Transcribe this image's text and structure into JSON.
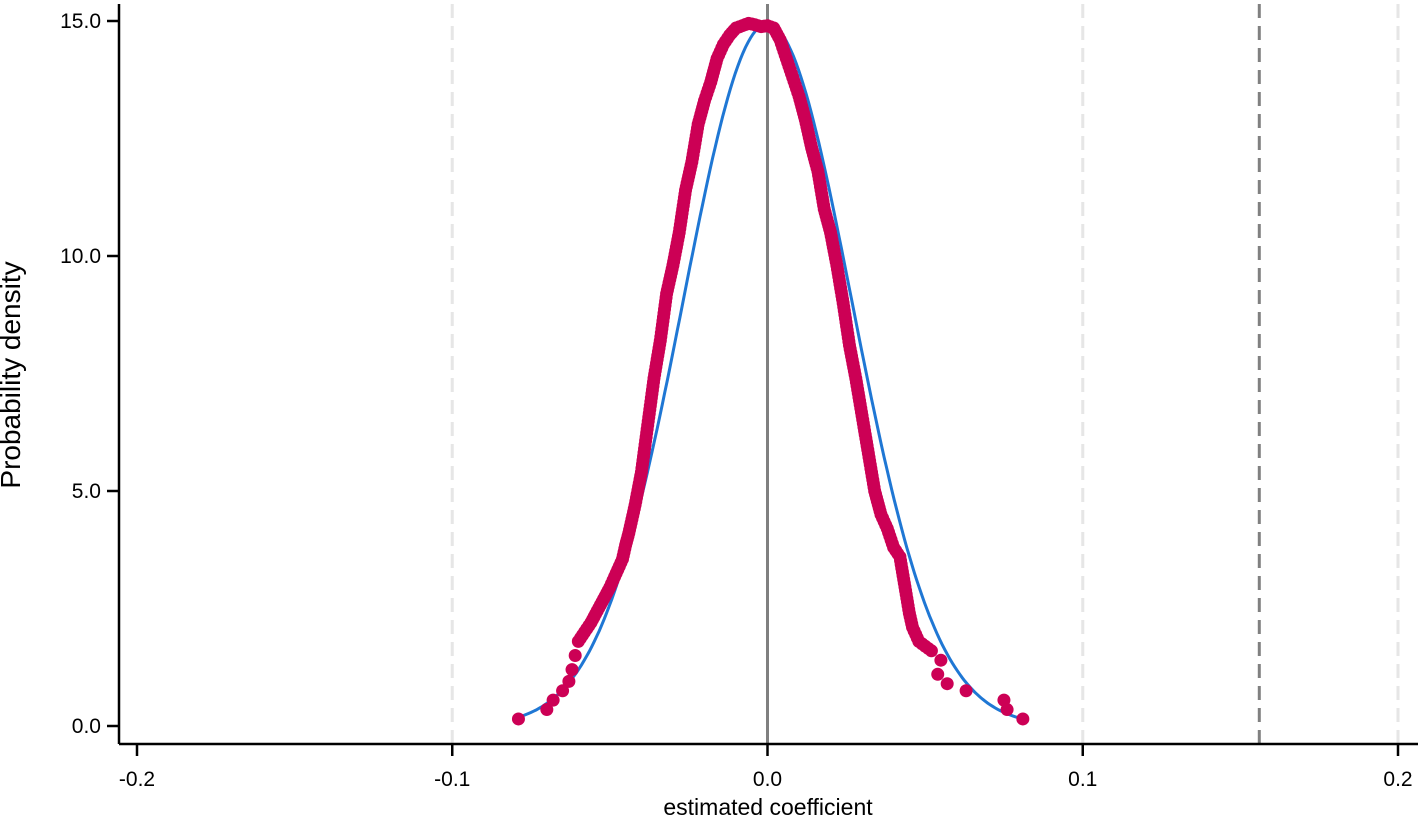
{
  "chart_data": {
    "type": "scatter",
    "xlabel": "estimated coefficient",
    "ylabel": "Probability density",
    "xlim": [
      -0.2,
      0.2
    ],
    "ylim": [
      0,
      15
    ],
    "x_ticks": [
      -0.2,
      -0.1,
      0.0,
      0.1,
      0.2
    ],
    "x_tick_labels": [
      "-0.2",
      "-0.1",
      "0.0",
      "0.1",
      "0.2"
    ],
    "y_ticks": [
      0,
      5,
      10,
      15
    ],
    "y_tick_labels": [
      "0.0",
      "5.0",
      "10.0",
      "15.0"
    ],
    "reference_lines": [
      {
        "x": 0.0,
        "style": "solid",
        "color": "#808080"
      },
      {
        "x": 0.156,
        "style": "dashed",
        "color": "#808080"
      }
    ],
    "grid_lines_x": [
      -0.1,
      0.1,
      0.2
    ],
    "fitted_normal": {
      "mean": 0.0,
      "sd": 0.0267,
      "x_range": [
        -0.079,
        0.081
      ],
      "color": "#1f77d4"
    },
    "series": [
      {
        "color": "#cc0055",
        "x": [
          -0.079,
          -0.07,
          -0.068,
          -0.065,
          -0.063,
          -0.062,
          -0.061,
          -0.06,
          -0.058,
          -0.056,
          -0.054,
          -0.052,
          -0.05,
          -0.048,
          -0.046,
          -0.045,
          -0.044,
          -0.042,
          -0.04,
          -0.038,
          -0.036,
          -0.034,
          -0.032,
          -0.03,
          -0.028,
          -0.026,
          -0.024,
          -0.022,
          -0.02,
          -0.018,
          -0.016,
          -0.014,
          -0.012,
          -0.01,
          -0.008,
          -0.006,
          -0.004,
          -0.002,
          0.0,
          0.002,
          0.004,
          0.006,
          0.008,
          0.01,
          0.012,
          0.014,
          0.016,
          0.018,
          0.02,
          0.022,
          0.024,
          0.026,
          0.028,
          0.03,
          0.032,
          0.034,
          0.036,
          0.038,
          0.04,
          0.042,
          0.043,
          0.044,
          0.045,
          0.046,
          0.048,
          0.05,
          0.052,
          0.054,
          0.055,
          0.057,
          0.063,
          0.075,
          0.076,
          0.081
        ],
        "y": [
          0.15,
          0.35,
          0.55,
          0.75,
          0.95,
          1.2,
          1.5,
          1.8,
          2.0,
          2.2,
          2.45,
          2.7,
          2.95,
          3.25,
          3.55,
          3.85,
          4.1,
          4.7,
          5.4,
          6.4,
          7.4,
          8.2,
          9.2,
          9.8,
          10.5,
          11.4,
          12.0,
          12.8,
          13.3,
          13.7,
          14.2,
          14.5,
          14.7,
          14.85,
          14.9,
          14.95,
          14.92,
          14.88,
          14.9,
          14.85,
          14.6,
          14.2,
          13.8,
          13.4,
          12.9,
          12.3,
          11.8,
          11.0,
          10.5,
          9.8,
          9.0,
          8.1,
          7.4,
          6.6,
          5.8,
          5.0,
          4.5,
          4.2,
          3.8,
          3.6,
          3.2,
          2.8,
          2.4,
          2.1,
          1.8,
          1.7,
          1.6,
          1.1,
          1.4,
          0.9,
          0.75,
          0.55,
          0.35,
          0.15
        ]
      }
    ]
  }
}
